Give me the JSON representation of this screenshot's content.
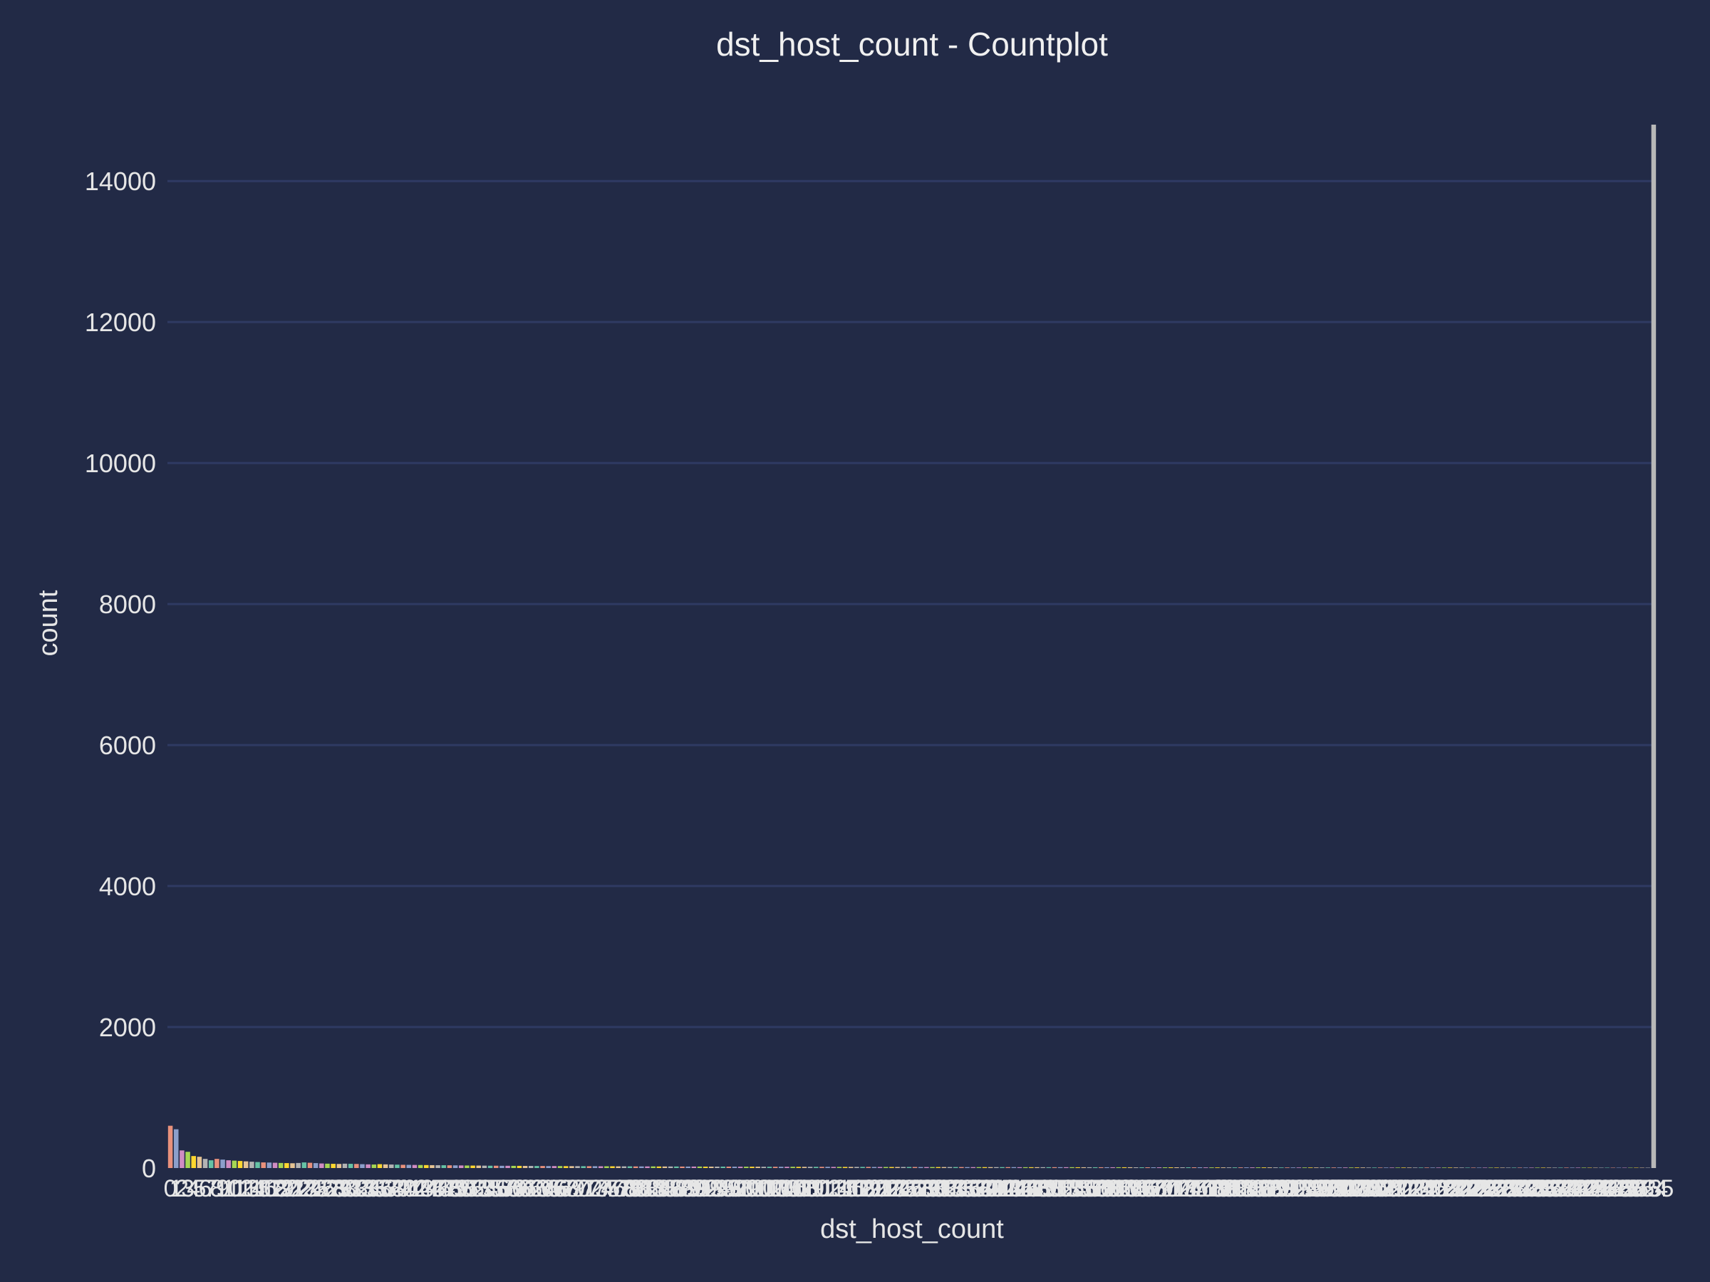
{
  "chart_data": {
    "type": "bar",
    "title": "dst_host_count - Countplot",
    "xlabel": "dst_host_count",
    "ylabel": "count",
    "ylim": [
      0,
      14800
    ],
    "yticks": [
      0,
      2000,
      4000,
      6000,
      8000,
      10000,
      12000,
      14000
    ],
    "grid": "y",
    "legend": "none",
    "categories_range": [
      0,
      255
    ],
    "values": [
      600,
      550,
      250,
      230,
      170,
      160,
      130,
      110,
      130,
      120,
      110,
      105,
      100,
      95,
      90,
      85,
      80,
      78,
      75,
      72,
      70,
      68,
      72,
      80,
      75,
      70,
      65,
      62,
      60,
      58,
      62,
      60,
      58,
      55,
      52,
      50,
      55,
      52,
      50,
      48,
      46,
      45,
      44,
      43,
      42,
      41,
      40,
      40,
      39,
      38,
      37,
      36,
      35,
      35,
      34,
      33,
      33,
      32,
      32,
      31,
      31,
      30,
      30,
      29,
      29,
      28,
      28,
      28,
      27,
      27,
      27,
      26,
      26,
      26,
      25,
      25,
      25,
      24,
      24,
      24,
      23,
      23,
      23,
      23,
      22,
      22,
      22,
      22,
      21,
      21,
      21,
      21,
      20,
      20,
      20,
      20,
      20,
      19,
      19,
      19,
      19,
      19,
      18,
      18,
      18,
      18,
      18,
      18,
      17,
      17,
      17,
      17,
      17,
      17,
      16,
      16,
      16,
      16,
      16,
      16,
      16,
      15,
      15,
      15,
      15,
      15,
      15,
      15,
      15,
      14,
      14,
      14,
      14,
      14,
      14,
      14,
      14,
      13,
      13,
      13,
      13,
      13,
      13,
      13,
      13,
      13,
      12,
      12,
      12,
      12,
      12,
      12,
      12,
      12,
      12,
      12,
      11,
      11,
      11,
      11,
      11,
      11,
      11,
      11,
      11,
      11,
      10,
      10,
      10,
      10,
      10,
      10,
      10,
      10,
      10,
      10,
      10,
      10,
      9,
      9,
      9,
      9,
      9,
      9,
      9,
      9,
      9,
      9,
      9,
      9,
      9,
      8,
      8,
      8,
      8,
      8,
      8,
      8,
      8,
      8,
      8,
      8,
      8,
      8,
      8,
      8,
      7,
      7,
      7,
      7,
      7,
      7,
      7,
      7,
      7,
      7,
      7,
      7,
      7,
      7,
      7,
      7,
      7,
      6,
      6,
      6,
      6,
      6,
      6,
      6,
      6,
      6,
      6,
      6,
      6,
      6,
      6,
      6,
      6,
      6,
      6,
      6,
      6,
      6,
      5,
      5,
      5,
      5,
      5,
      5,
      5,
      5,
      5,
      5,
      5,
      14800
    ],
    "palette": [
      "#e8917c",
      "#8c9fcb",
      "#d08cc2",
      "#a6d653",
      "#ffd72f",
      "#e5c393",
      "#b3b3b3",
      "#66c2a5"
    ]
  }
}
